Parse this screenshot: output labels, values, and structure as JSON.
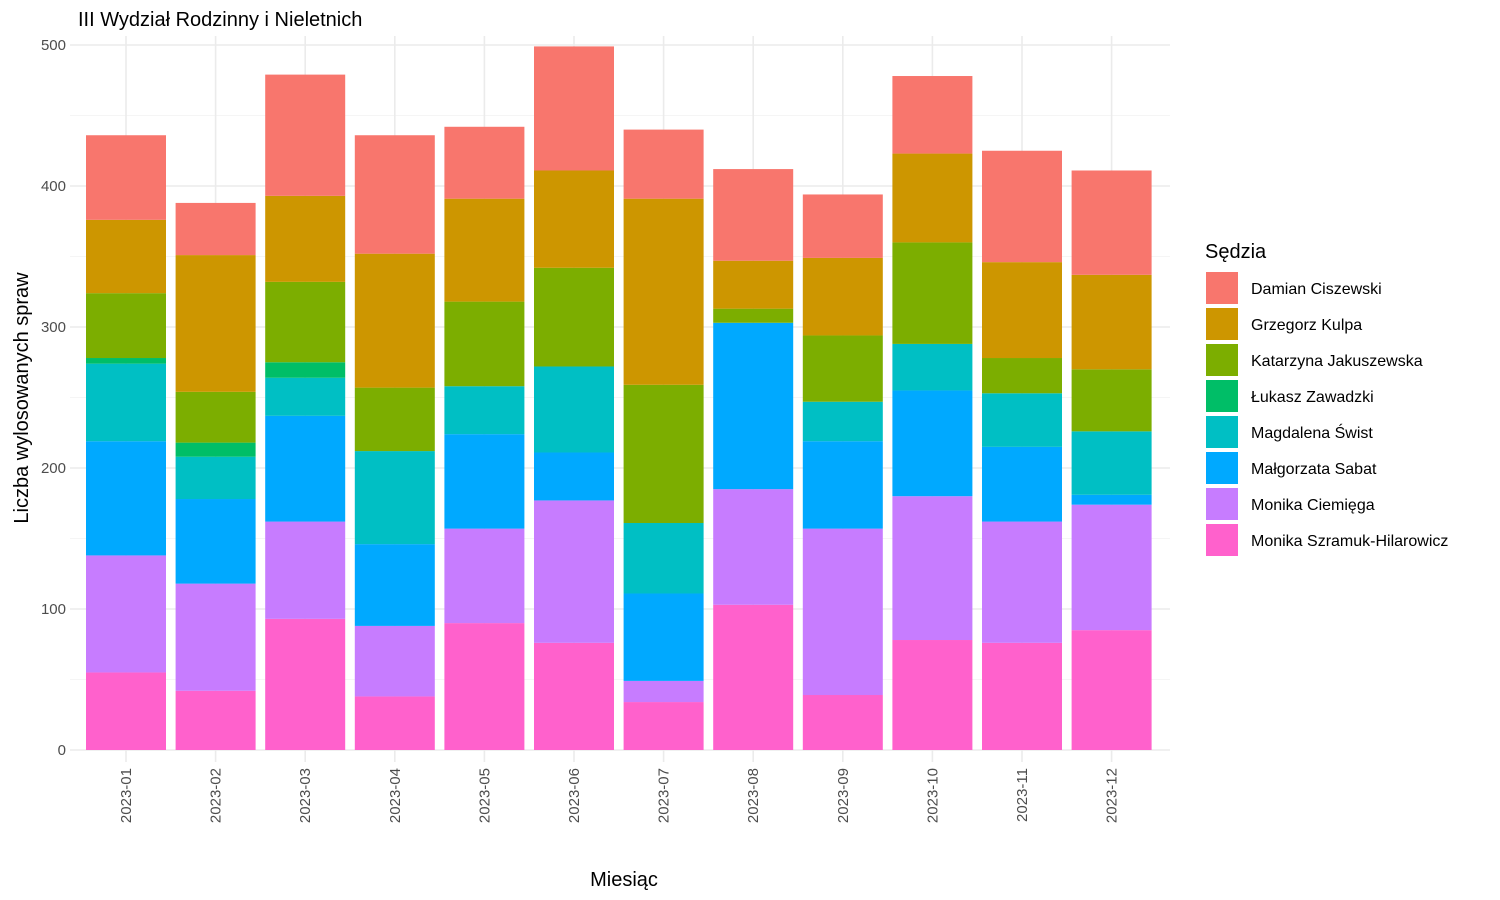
{
  "chart_data": {
    "type": "bar",
    "stacked": true,
    "title": "III Wydział Rodzinny i Nieletnich",
    "xlabel": "Miesiąc",
    "ylabel": "Liczba wylosowanych spraw",
    "ylim": [
      0,
      520
    ],
    "yticks": [
      0,
      100,
      200,
      300,
      400,
      500
    ],
    "grid": true,
    "legend_title": "Sędzia",
    "legend_position": "right",
    "categories": [
      "2023-01",
      "2023-02",
      "2023-03",
      "2023-04",
      "2023-05",
      "2023-06",
      "2023-07",
      "2023-08",
      "2023-09",
      "2023-10",
      "2023-11",
      "2023-12"
    ],
    "series": [
      {
        "name": "Damian Ciszewski",
        "color": "#F8766D",
        "values": [
          60,
          37,
          86,
          84,
          51,
          88,
          49,
          65,
          45,
          55,
          79,
          74
        ]
      },
      {
        "name": "Grzegorz Kulpa",
        "color": "#CD9600",
        "values": [
          52,
          97,
          61,
          95,
          73,
          69,
          132,
          34,
          55,
          63,
          68,
          67
        ]
      },
      {
        "name": "Katarzyna Jakuszewska",
        "color": "#7CAE00",
        "values": [
          46,
          36,
          57,
          45,
          60,
          70,
          98,
          10,
          47,
          72,
          25,
          44
        ]
      },
      {
        "name": "Łukasz Zawadzki",
        "color": "#00BE67",
        "values": [
          4,
          10,
          11,
          0,
          0,
          0,
          0,
          0,
          0,
          0,
          0,
          0
        ]
      },
      {
        "name": "Magdalena Świst",
        "color": "#00BFC4",
        "values": [
          55,
          30,
          27,
          66,
          34,
          61,
          50,
          0,
          28,
          33,
          38,
          45
        ]
      },
      {
        "name": "Małgorzata Sabat",
        "color": "#00A9FF",
        "values": [
          81,
          60,
          75,
          58,
          67,
          34,
          62,
          118,
          62,
          75,
          53,
          7
        ]
      },
      {
        "name": "Monika Ciemięga",
        "color": "#C77CFF",
        "values": [
          83,
          76,
          69,
          50,
          67,
          101,
          15,
          82,
          118,
          102,
          86,
          89
        ]
      },
      {
        "name": "Monika Szramuk-Hilarowicz",
        "color": "#FF61CC",
        "values": [
          55,
          42,
          93,
          38,
          90,
          76,
          34,
          103,
          39,
          78,
          76,
          85
        ]
      }
    ]
  }
}
